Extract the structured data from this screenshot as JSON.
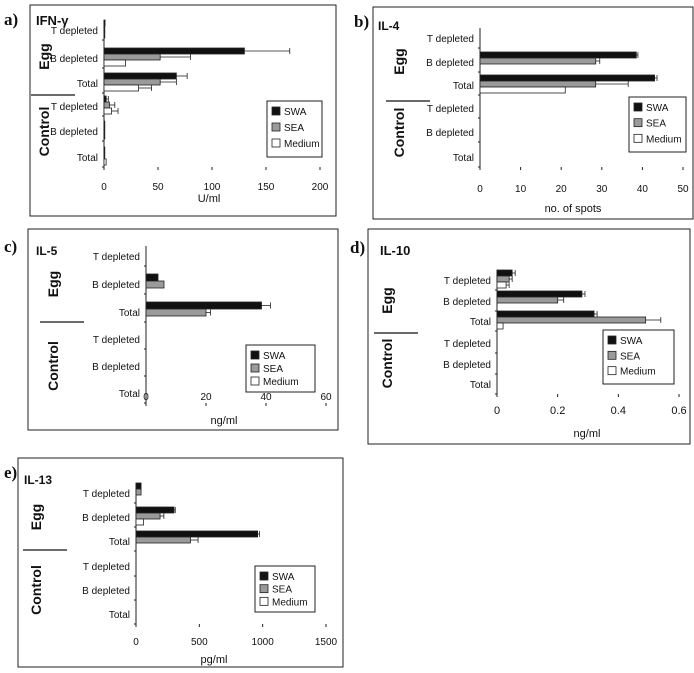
{
  "panel_letters": [
    "a)",
    "b)",
    "c)",
    "d)",
    "e)"
  ],
  "group_labels": {
    "egg": "Egg",
    "control": "Control"
  },
  "colors": {
    "SWA": "#111111",
    "SEA": "#9a9a9a",
    "Medium": "#ffffff",
    "frame": "#222222"
  },
  "chart_data": [
    {
      "type": "bar",
      "orientation": "horizontal",
      "title": "IFN-γ",
      "xlabel": "U/ml",
      "ylabel": "",
      "xlim": [
        0,
        200
      ],
      "xticks": [
        "0",
        "50",
        "100",
        "150",
        "200"
      ],
      "categories": [
        "T depleted",
        "B depleted",
        "Total",
        "T depleted",
        "B depleted",
        "Total"
      ],
      "groups": [
        "Egg",
        "Egg",
        "Egg",
        "Control",
        "Control",
        "Control"
      ],
      "legend": [
        "SWA",
        "SEA",
        "Medium"
      ],
      "legend_position": "bottom-right",
      "grid": false,
      "series": [
        {
          "name": "SWA",
          "values": [
            1,
            130,
            67,
            2,
            0.5,
            0.5
          ],
          "errors": [
            0,
            42,
            10,
            2,
            0,
            0
          ]
        },
        {
          "name": "SEA",
          "values": [
            0.5,
            52,
            52,
            5,
            0.3,
            0.5
          ],
          "errors": [
            0,
            28,
            15,
            5,
            0,
            0
          ]
        },
        {
          "name": "Medium",
          "values": [
            0.5,
            20,
            32,
            7,
            0.2,
            2
          ],
          "errors": [
            0,
            0,
            12,
            6,
            0,
            0
          ]
        }
      ]
    },
    {
      "type": "bar",
      "orientation": "horizontal",
      "title": "IL-4",
      "xlabel": "no. of spots",
      "ylabel": "",
      "xlim": [
        0,
        50
      ],
      "xticks": [
        "0",
        "10",
        "20",
        "30",
        "40",
        "50"
      ],
      "categories": [
        "T depleted",
        "B depleted",
        "Total",
        "T depleted",
        "B depleted",
        "Total"
      ],
      "groups": [
        "Egg",
        "Egg",
        "Egg",
        "Control",
        "Control",
        "Control"
      ],
      "legend": [
        "SWA",
        "SEA",
        "Medium"
      ],
      "legend_position": "bottom-right",
      "grid": false,
      "series": [
        {
          "name": "SWA",
          "values": [
            0,
            38.5,
            43,
            0,
            0,
            0
          ],
          "errors": [
            0,
            0.4,
            0.6,
            0,
            0,
            0
          ]
        },
        {
          "name": "SEA",
          "values": [
            0,
            28.5,
            28.5,
            0,
            0,
            0
          ],
          "errors": [
            0,
            1,
            8,
            0,
            0,
            0
          ]
        },
        {
          "name": "Medium",
          "values": [
            0,
            0,
            21,
            0,
            0,
            0
          ],
          "errors": [
            0,
            0,
            0,
            0,
            0,
            0
          ]
        }
      ]
    },
    {
      "type": "bar",
      "orientation": "horizontal",
      "title": "IL-5",
      "xlabel": "ng/ml",
      "ylabel": "",
      "xlim": [
        0,
        60
      ],
      "xticks": [
        "0",
        "20",
        "40",
        "60"
      ],
      "categories": [
        "T depleted",
        "B depleted",
        "Total",
        "T depleted",
        "B depleted",
        "Total"
      ],
      "groups": [
        "Egg",
        "Egg",
        "Egg",
        "Control",
        "Control",
        "Control"
      ],
      "legend": [
        "SWA",
        "SEA",
        "Medium"
      ],
      "legend_position": "bottom-right",
      "grid": false,
      "series": [
        {
          "name": "SWA",
          "values": [
            0,
            4,
            38.5,
            0,
            0,
            0
          ],
          "errors": [
            0,
            0,
            3,
            0,
            0,
            0
          ]
        },
        {
          "name": "SEA",
          "values": [
            0,
            6,
            20,
            0,
            0,
            0
          ],
          "errors": [
            0,
            0,
            1.5,
            0,
            0,
            0
          ]
        },
        {
          "name": "Medium",
          "values": [
            0,
            0,
            0,
            0,
            0,
            0
          ],
          "errors": [
            0,
            0,
            0,
            0,
            0,
            0
          ]
        }
      ]
    },
    {
      "type": "bar",
      "orientation": "horizontal",
      "title": "IL-10",
      "xlabel": "ng/ml",
      "ylabel": "",
      "xlim": [
        0,
        0.6
      ],
      "xticks": [
        "0",
        "0.2",
        "0.4",
        "0.6"
      ],
      "categories": [
        "T depleted",
        "B depleted",
        "Total",
        "T depleted",
        "B depleted",
        "Total"
      ],
      "groups": [
        "Egg",
        "Egg",
        "Egg",
        "Control",
        "Control",
        "Control"
      ],
      "legend": [
        "SWA",
        "SEA",
        "Medium"
      ],
      "legend_position": "bottom-right",
      "grid": false,
      "series": [
        {
          "name": "SWA",
          "values": [
            0.05,
            0.28,
            0.32,
            0,
            0,
            0
          ],
          "errors": [
            0.01,
            0.01,
            0.01,
            0,
            0,
            0
          ]
        },
        {
          "name": "SEA",
          "values": [
            0.04,
            0.2,
            0.49,
            0,
            0,
            0
          ],
          "errors": [
            0.01,
            0.02,
            0.05,
            0,
            0,
            0
          ]
        },
        {
          "name": "Medium",
          "values": [
            0.03,
            0,
            0.02,
            0,
            0,
            0
          ],
          "errors": [
            0.01,
            0,
            0,
            0,
            0,
            0
          ]
        }
      ]
    },
    {
      "type": "bar",
      "orientation": "horizontal",
      "title": "IL-13",
      "xlabel": "pg/ml",
      "ylabel": "",
      "xlim": [
        0,
        1500
      ],
      "xticks": [
        "0",
        "500",
        "1000",
        "1500"
      ],
      "categories": [
        "T depleted",
        "B depleted",
        "Total",
        "T depleted",
        "B depleted",
        "Total"
      ],
      "groups": [
        "Egg",
        "Egg",
        "Egg",
        "Control",
        "Control",
        "Control"
      ],
      "legend": [
        "SWA",
        "SEA",
        "Medium"
      ],
      "legend_position": "bottom-right",
      "grid": false,
      "series": [
        {
          "name": "SWA",
          "values": [
            40,
            300,
            960,
            0,
            0,
            0
          ],
          "errors": [
            0,
            10,
            15,
            0,
            0,
            0
          ]
        },
        {
          "name": "SEA",
          "values": [
            40,
            190,
            430,
            0,
            0,
            0
          ],
          "errors": [
            0,
            30,
            60,
            0,
            0,
            0
          ]
        },
        {
          "name": "Medium",
          "values": [
            0,
            60,
            0,
            0,
            0,
            0
          ],
          "errors": [
            0,
            0,
            0,
            0,
            0,
            0
          ]
        }
      ]
    }
  ]
}
